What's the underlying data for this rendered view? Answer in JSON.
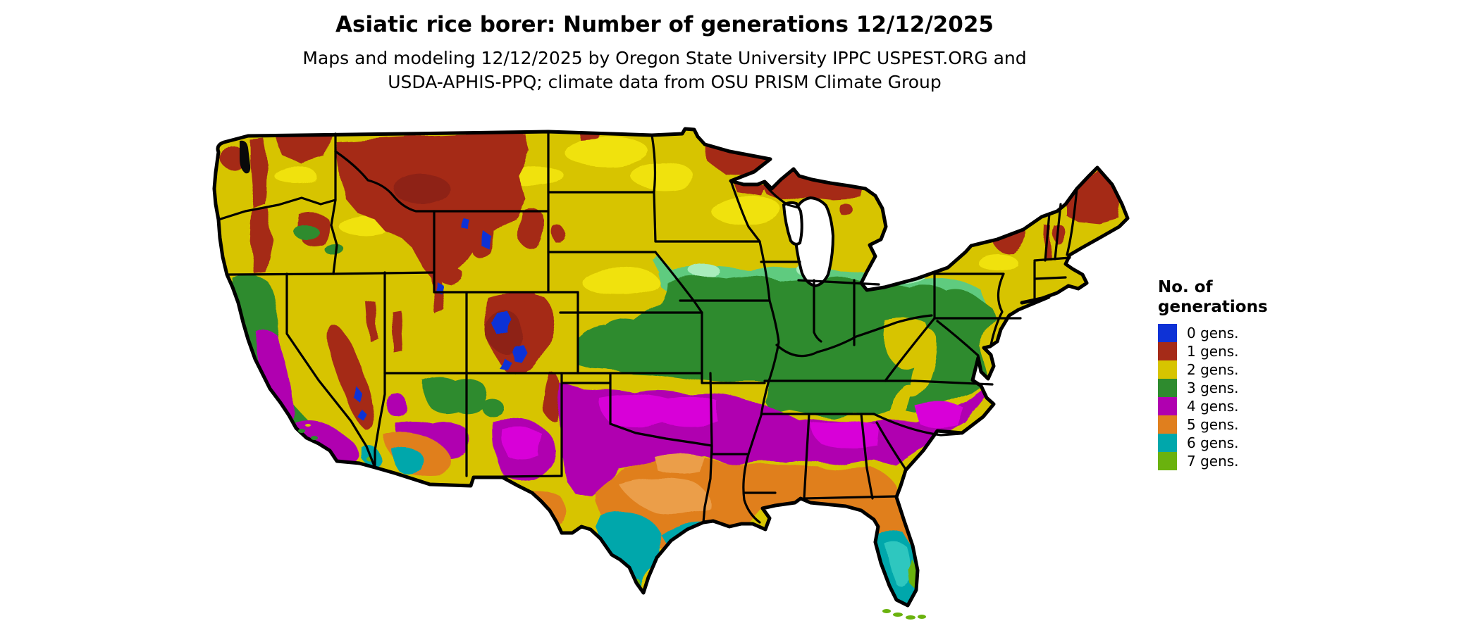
{
  "header": {
    "title": "Asiatic rice borer: Number of generations 12/12/2025",
    "subtitle_line1": "Maps and modeling 12/12/2025 by Oregon State University IPPC USPEST.ORG and",
    "subtitle_line2": "USDA-APHIS-PPQ; climate data from OSU PRISM Climate Group"
  },
  "legend": {
    "title_line1": "No. of",
    "title_line2": "generations",
    "items": [
      {
        "key": "gen0",
        "label": "0 gens.",
        "color": "#0e32d6"
      },
      {
        "key": "gen1",
        "label": "1 gens.",
        "color": "#a52b18"
      },
      {
        "key": "gen2",
        "label": "2 gens.",
        "color": "#d7c400"
      },
      {
        "key": "gen3",
        "label": "3 gens.",
        "color": "#2e8b2e"
      },
      {
        "key": "gen4",
        "label": "4 gens.",
        "color": "#b000b0"
      },
      {
        "key": "gen5",
        "label": "5 gens.",
        "color": "#e07f1e"
      },
      {
        "key": "gen6",
        "label": "6 gens.",
        "color": "#00a7ab"
      },
      {
        "key": "gen7",
        "label": "7 gens.",
        "color": "#6ab20e"
      }
    ]
  },
  "map": {
    "description": "Contiguous United States raster map of modeled Asiatic rice borer generations",
    "border_color": "#000000",
    "water_color": "#ffffff",
    "palette": {
      "gen2_bright": "#f0e209",
      "gen3_light": "#5ecb7f",
      "gen3_mint": "#a9ecbc",
      "gen4_bright": "#d800d8",
      "gen5_light": "#eb9e49",
      "gen6_light": "#2fc7bf",
      "gen1_dark": "#8e2212",
      "water_dark": "#0a0a0a"
    }
  }
}
